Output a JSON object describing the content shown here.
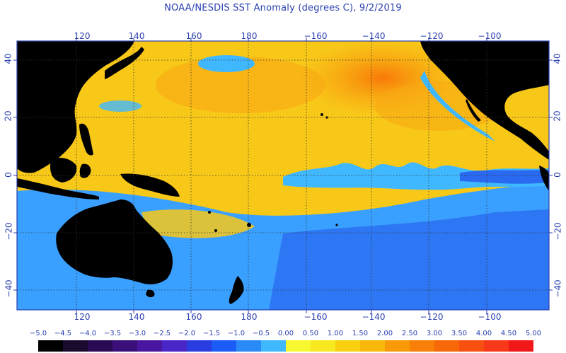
{
  "title": "NOAA/NESDIS SST Anomaly (degrees C), 9/2/2019",
  "lon_ticks": [
    "120",
    "140",
    "160",
    "180",
    "−160",
    "−140",
    "−120",
    "−100"
  ],
  "lat_ticks": [
    "40",
    "20",
    "0",
    "−20",
    "−40"
  ],
  "legend": {
    "labels": [
      "−5.0",
      "−4.5",
      "−4.0",
      "−3.5",
      "−3.0",
      "−2.5",
      "−2.0",
      "−1.5",
      "−1.0",
      "−0.5",
      "0.00",
      "0.50",
      "1.00",
      "1.50",
      "2.00",
      "2.50",
      "3.00",
      "3.50",
      "4.00",
      "4.50",
      "5.00"
    ],
    "colors": [
      "#000000",
      "#1a0a2e",
      "#2a0a55",
      "#3a0f7a",
      "#4a16a0",
      "#4a26c8",
      "#2a3de0",
      "#1a5cf5",
      "#2a8af8",
      "#40b8ff",
      "#f8f830",
      "#f8e820",
      "#f8d010",
      "#f8b808",
      "#f89a08",
      "#f88008",
      "#f86808",
      "#f85010",
      "#f83818",
      "#f01818"
    ]
  },
  "colors": {
    "land": "#000000",
    "ocean_warm": "#f8c818",
    "ocean_hot": "#f88008",
    "ocean_cool": "#3aa0ff",
    "ocean_cold": "#2a6af0",
    "grid": "#333333",
    "frame": "#2a3fb0"
  }
}
